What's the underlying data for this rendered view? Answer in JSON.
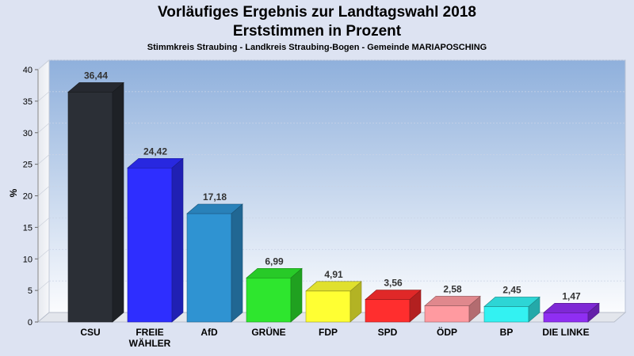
{
  "header": {
    "title_line1": "Vorläufiges Ergebnis zur Landtagswahl 2018",
    "title_line2": "Erststimmen in Prozent",
    "subtitle": "Stimmkreis Straubing - Landkreis Straubing-Bogen - Gemeinde MARIAPOSCHING"
  },
  "chart_data": {
    "type": "bar",
    "title": "Vorläufiges Ergebnis zur Landtagswahl 2018 Erststimmen in Prozent",
    "subtitle": "Stimmkreis Straubing - Landkreis Straubing-Bogen - Gemeinde MARIAPOSCHING",
    "ylabel": "%",
    "xlabel": "",
    "ylim": [
      0,
      40
    ],
    "yticks": [
      0,
      5,
      10,
      15,
      20,
      25,
      30,
      35,
      40
    ],
    "grid": true,
    "categories": [
      "CSU",
      "FREIE WÄHLER",
      "AfD",
      "GRÜNE",
      "FDP",
      "SPD",
      "ÖDP",
      "BP",
      "DIE LINKE"
    ],
    "category_lines": [
      [
        "CSU"
      ],
      [
        "FREIE",
        "WÄHLER"
      ],
      [
        "AfD"
      ],
      [
        "GRÜNE"
      ],
      [
        "FDP"
      ],
      [
        "SPD"
      ],
      [
        "ÖDP"
      ],
      [
        "BP"
      ],
      [
        "DIE LINKE"
      ]
    ],
    "values": [
      36.44,
      24.42,
      17.18,
      6.99,
      4.91,
      3.56,
      2.58,
      2.45,
      1.47
    ],
    "value_labels": [
      "36,44",
      "24,42",
      "17,18",
      "6,99",
      "4,91",
      "3,56",
      "2,58",
      "2,45",
      "1,47"
    ],
    "colors": [
      "#2b2f36",
      "#2e2eff",
      "#2f93d2",
      "#2ee62e",
      "#ffff33",
      "#ff2e2e",
      "#ff9aa0",
      "#33f2f2",
      "#8f2ef2"
    ]
  }
}
